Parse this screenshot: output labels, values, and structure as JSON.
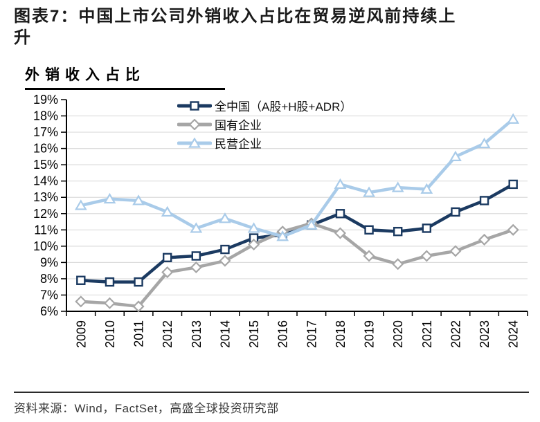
{
  "figure": {
    "title": "图表7：中国上市公司外销收入占比在贸易逆风前持续上升",
    "chart_title_label": "外销收入占比",
    "source": "资料来源：Wind，FactSet，高盛全球投资研究部"
  },
  "chart_data": {
    "type": "line",
    "title": "外销收入占比",
    "x": [
      "2009",
      "2010",
      "2011",
      "2012",
      "2013",
      "2014",
      "2015",
      "2016",
      "2017",
      "2018",
      "2019",
      "2020",
      "2021",
      "2022",
      "2023",
      "2024"
    ],
    "ylim": [
      6,
      19
    ],
    "y_tick_step": 1,
    "y_tick_labels": [
      "6%",
      "7%",
      "8%",
      "9%",
      "10%",
      "11%",
      "12%",
      "13%",
      "14%",
      "15%",
      "16%",
      "17%",
      "18%",
      "19%"
    ],
    "grid": "horizontal",
    "gridline_color": "#dcdcdc",
    "axis_color": "#000000",
    "legend_position": "top-left-inside",
    "series": [
      {
        "name": "全中国（A股+H股+ADR）",
        "color": "#1B3A61",
        "marker": "square",
        "values": [
          7.9,
          7.8,
          7.8,
          9.3,
          9.4,
          9.8,
          10.5,
          10.7,
          11.3,
          12.0,
          11.0,
          10.9,
          11.1,
          12.1,
          12.8,
          13.8
        ]
      },
      {
        "name": "国有企业",
        "color": "#A6A6A6",
        "marker": "diamond",
        "values": [
          6.6,
          6.5,
          6.3,
          8.4,
          8.7,
          9.1,
          10.1,
          10.9,
          11.4,
          10.8,
          9.4,
          8.9,
          9.4,
          9.7,
          10.4,
          11.0
        ]
      },
      {
        "name": "民营企业",
        "color": "#A9CBE9",
        "marker": "triangle",
        "values": [
          12.5,
          12.9,
          12.8,
          12.1,
          11.1,
          11.7,
          11.1,
          10.6,
          11.3,
          13.8,
          13.3,
          13.6,
          13.5,
          15.5,
          16.3,
          17.8
        ]
      }
    ]
  }
}
